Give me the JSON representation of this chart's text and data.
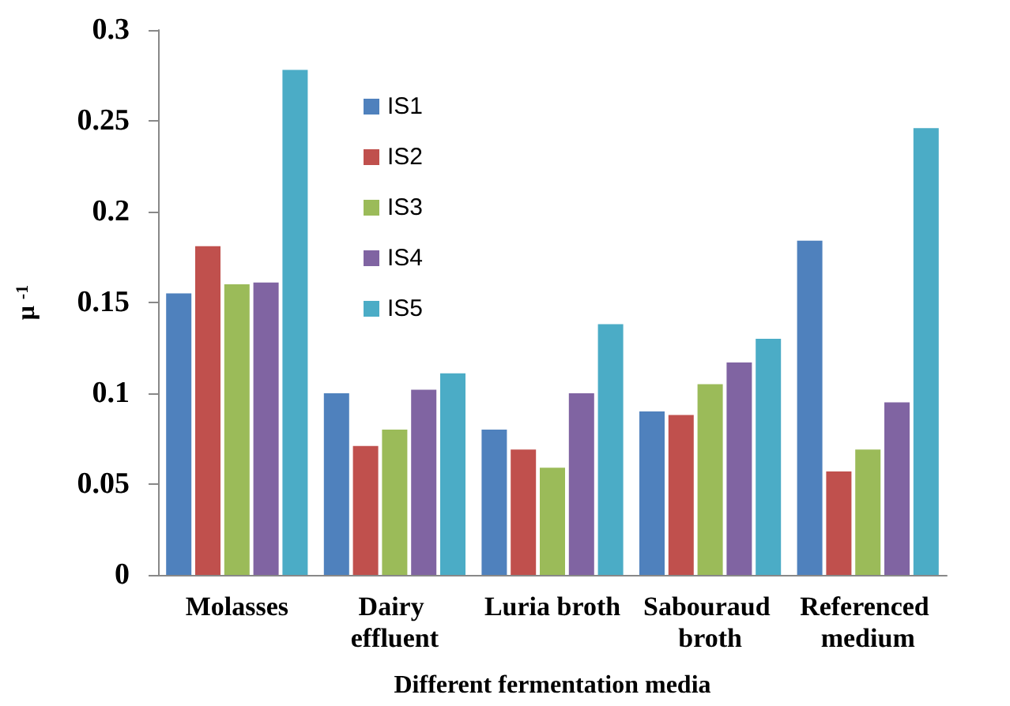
{
  "chart_data": {
    "type": "bar",
    "xlabel": "Different fermentation media",
    "ylabel": "μ $^{-1}$",
    "categories": [
      "Molasses",
      "Dairy effluent",
      "Luria broth",
      "Sabouraud broth",
      "Referenced medium"
    ],
    "series": [
      {
        "name": "IS1",
        "color": "#4f81bd",
        "values": [
          0.155,
          0.1,
          0.08,
          0.09,
          0.184
        ]
      },
      {
        "name": "IS2",
        "color": "#c0504d",
        "values": [
          0.181,
          0.071,
          0.069,
          0.088,
          0.057
        ]
      },
      {
        "name": "IS3",
        "color": "#9bbb59",
        "values": [
          0.16,
          0.08,
          0.059,
          0.105,
          0.069
        ]
      },
      {
        "name": "IS4",
        "color": "#8064a2",
        "values": [
          0.161,
          0.102,
          0.1,
          0.117,
          0.095
        ]
      },
      {
        "name": "IS5",
        "color": "#4bacc6",
        "values": [
          0.278,
          0.111,
          0.138,
          0.13,
          0.246
        ]
      }
    ],
    "ylim": [
      0,
      0.3
    ],
    "yticks": [
      0,
      0.05,
      0.1,
      0.15,
      0.2,
      0.25,
      0.3
    ],
    "grid": false,
    "legend": "top left"
  }
}
